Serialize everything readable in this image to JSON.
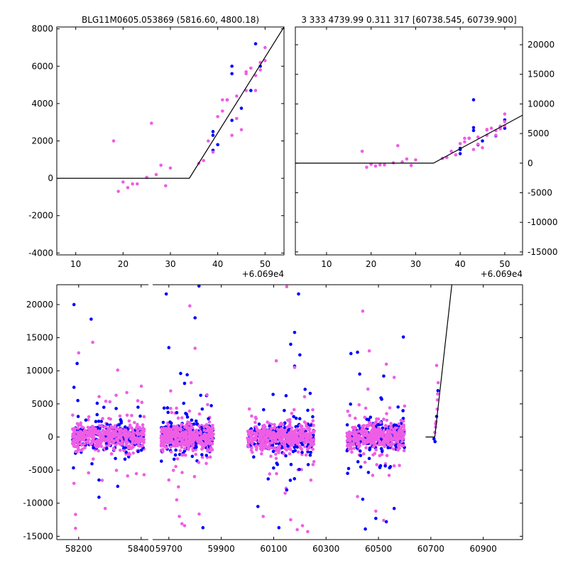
{
  "chart_data": [
    {
      "id": "top_left",
      "type": "scatter",
      "title": "BLG11M0605.053869 (5816.60, 4800.18)",
      "offset_label": "+6.069e4",
      "xlim": [
        6,
        54
      ],
      "ylim": [
        -4100,
        8100
      ],
      "xticks": [
        10,
        20,
        30,
        40,
        50
      ],
      "yticks": [
        -4000,
        -2000,
        0,
        2000,
        4000,
        6000,
        8000
      ],
      "yaxis_side": "left",
      "model_line": [
        [
          6,
          0
        ],
        [
          34,
          0
        ],
        [
          54,
          8100
        ]
      ],
      "series": [
        {
          "name": "blue",
          "color": "#0000ff",
          "points": [
            [
              39,
              1500
            ],
            [
              39,
              2300
            ],
            [
              39,
              2500
            ],
            [
              40,
              1800
            ],
            [
              42,
              4200
            ],
            [
              43,
              3100
            ],
            [
              43,
              5600
            ],
            [
              43,
              6000
            ],
            [
              45,
              3750
            ],
            [
              47,
              4700
            ],
            [
              48,
              7200
            ],
            [
              49,
              6000
            ]
          ]
        },
        {
          "name": "magenta",
          "color": "#ee5ee5",
          "points": [
            [
              18,
              2000
            ],
            [
              19,
              -700
            ],
            [
              20,
              -200
            ],
            [
              21,
              -500
            ],
            [
              22,
              -300
            ],
            [
              23,
              -300
            ],
            [
              25,
              50
            ],
            [
              26,
              2950
            ],
            [
              27,
              200
            ],
            [
              28,
              700
            ],
            [
              29,
              -400
            ],
            [
              30,
              550
            ],
            [
              36,
              800
            ],
            [
              37,
              950
            ],
            [
              38,
              2000
            ],
            [
              39,
              1400
            ],
            [
              40,
              3300
            ],
            [
              41,
              4200
            ],
            [
              41,
              3600
            ],
            [
              42,
              4200
            ],
            [
              43,
              2300
            ],
            [
              44,
              4400
            ],
            [
              44,
              3200
            ],
            [
              45,
              2600
            ],
            [
              46,
              4700
            ],
            [
              46,
              5600
            ],
            [
              46,
              5700
            ],
            [
              47,
              5900
            ],
            [
              48,
              5500
            ],
            [
              48,
              4700
            ],
            [
              49,
              5800
            ],
            [
              49,
              6200
            ],
            [
              50,
              6300
            ],
            [
              50,
              7000
            ]
          ]
        }
      ]
    },
    {
      "id": "top_right",
      "type": "scatter",
      "title": "3 333 4739.99 0.311 317 [60738.545, 60739.900]",
      "offset_label": "+6.069e4",
      "xlim": [
        3,
        54
      ],
      "ylim": [
        -15500,
        23000
      ],
      "xticks": [
        10,
        20,
        30,
        40,
        50
      ],
      "yticks": [
        -15000,
        -10000,
        -5000,
        0,
        5000,
        10000,
        15000,
        20000
      ],
      "yaxis_side": "right",
      "model_line": [
        [
          3,
          0
        ],
        [
          34,
          0
        ],
        [
          54,
          8100
        ]
      ],
      "series": [
        {
          "name": "blue",
          "color": "#0000ff",
          "points": [
            [
              40,
              1600
            ],
            [
              40,
              2300
            ],
            [
              40,
              2500
            ],
            [
              42,
              4200
            ],
            [
              43,
              5500
            ],
            [
              43,
              6000
            ],
            [
              43,
              10700
            ],
            [
              44,
              3100
            ],
            [
              45,
              3750
            ],
            [
              48,
              4600
            ],
            [
              49,
              6200
            ],
            [
              50,
              5900
            ],
            [
              50,
              7300
            ]
          ]
        },
        {
          "name": "magenta",
          "color": "#ee5ee5",
          "points": [
            [
              18,
              2000
            ],
            [
              19,
              -700
            ],
            [
              20,
              -200
            ],
            [
              21,
              -500
            ],
            [
              22,
              -300
            ],
            [
              23,
              -300
            ],
            [
              25,
              50
            ],
            [
              26,
              2950
            ],
            [
              27,
              200
            ],
            [
              28,
              700
            ],
            [
              29,
              -400
            ],
            [
              30,
              550
            ],
            [
              36,
              800
            ],
            [
              37,
              950
            ],
            [
              38,
              2000
            ],
            [
              39,
              1400
            ],
            [
              40,
              3300
            ],
            [
              41,
              4200
            ],
            [
              41,
              3600
            ],
            [
              42,
              4200
            ],
            [
              43,
              2300
            ],
            [
              44,
              4400
            ],
            [
              44,
              3200
            ],
            [
              45,
              2600
            ],
            [
              46,
              4700
            ],
            [
              46,
              5600
            ],
            [
              46,
              5700
            ],
            [
              47,
              5900
            ],
            [
              48,
              5500
            ],
            [
              48,
              4700
            ],
            [
              49,
              5800
            ],
            [
              49,
              6200
            ],
            [
              50,
              6300
            ],
            [
              50,
              7000
            ],
            [
              50,
              8300
            ]
          ]
        }
      ]
    },
    {
      "id": "bottom",
      "type": "scatter",
      "title": "",
      "xlim": [
        58130,
        61050
      ],
      "ylim": [
        -15500,
        23000
      ],
      "xticks": [
        58200,
        58400,
        59700,
        59900,
        60100,
        60300,
        60500,
        60700,
        60900
      ],
      "x_axis_break": {
        "left_end": 58430,
        "right_start": 59630
      },
      "yticks": [
        -15000,
        -10000,
        -5000,
        0,
        5000,
        10000,
        15000,
        20000
      ],
      "yaxis_side": "left",
      "model_line": [
        [
          60680,
          0
        ],
        [
          60715,
          0
        ],
        [
          60780,
          23000
        ]
      ],
      "seasons": [
        {
          "x_range": [
            58180,
            58410
          ],
          "blue_outliers": [
            [
              58185,
              20000
            ],
            [
              58195,
              11100
            ],
            [
              58240,
              17800
            ],
            [
              58265,
              -6500
            ],
            [
              58265,
              -9100
            ],
            [
              58320,
              4300
            ],
            [
              58390,
              4500
            ],
            [
              58185,
              7500
            ]
          ],
          "magenta_outliers": [
            [
              58190,
              -13800
            ],
            [
              58185,
              -7000
            ],
            [
              58200,
              12700
            ],
            [
              58245,
              14300
            ],
            [
              58285,
              -10800
            ],
            [
              58325,
              10100
            ],
            [
              58320,
              6300
            ],
            [
              58190,
              -11700
            ]
          ]
        },
        {
          "x_range": [
            59670,
            59870
          ],
          "blue_outliers": [
            [
              59690,
              21600
            ],
            [
              59700,
              13500
            ],
            [
              59815,
              22800
            ],
            [
              59800,
              18000
            ],
            [
              59770,
              9400
            ],
            [
              59745,
              9600
            ],
            [
              59830,
              -13700
            ],
            [
              59760,
              8100
            ]
          ],
          "magenta_outliers": [
            [
              59780,
              19800
            ],
            [
              59800,
              13400
            ],
            [
              59760,
              -13400
            ],
            [
              59750,
              -13100
            ],
            [
              59730,
              -9500
            ],
            [
              59740,
              -12000
            ],
            [
              59700,
              -6500
            ],
            [
              59785,
              8200
            ]
          ]
        },
        {
          "x_range": [
            60000,
            60255
          ],
          "blue_outliers": [
            [
              60195,
              21600
            ],
            [
              60180,
              15800
            ],
            [
              60165,
              14000
            ],
            [
              60120,
              -13700
            ],
            [
              60040,
              -10500
            ],
            [
              60200,
              12400
            ],
            [
              60220,
              7200
            ],
            [
              60180,
              10700
            ],
            [
              60150,
              -8000
            ]
          ],
          "magenta_outliers": [
            [
              60150,
              22700
            ],
            [
              60190,
              -14000
            ],
            [
              60210,
              -13400
            ],
            [
              60230,
              -14300
            ],
            [
              60165,
              -12500
            ],
            [
              60110,
              11500
            ],
            [
              60060,
              -12000
            ],
            [
              60180,
              10500
            ]
          ]
        },
        {
          "x_range": [
            60380,
            60600
          ],
          "blue_outliers": [
            [
              60450,
              -13900
            ],
            [
              60420,
              12800
            ],
            [
              60395,
              12600
            ],
            [
              60595,
              15100
            ],
            [
              60490,
              -12300
            ],
            [
              60520,
              9200
            ],
            [
              60530,
              -12800
            ],
            [
              60560,
              -10800
            ],
            [
              60440,
              -9400
            ]
          ],
          "magenta_outliers": [
            [
              60440,
              19000
            ],
            [
              60465,
              13000
            ],
            [
              60530,
              11000
            ],
            [
              60520,
              -12600
            ],
            [
              60490,
              -11200
            ],
            [
              60420,
              -9000
            ],
            [
              60580,
              -4300
            ],
            [
              60560,
              9000
            ]
          ]
        }
      ],
      "late_points": [
        [
          60712,
          -300
        ],
        [
          60715,
          700
        ],
        [
          60718,
          1500
        ],
        [
          60720,
          2300
        ],
        [
          60722,
          3100
        ],
        [
          60724,
          4200
        ],
        [
          60725,
          5600
        ],
        [
          60726,
          6500
        ],
        [
          60727,
          7000
        ],
        [
          60728,
          8200
        ],
        [
          60722,
          10800
        ],
        [
          60718,
          2000
        ],
        [
          60716,
          -700
        ]
      ]
    }
  ],
  "colors": {
    "blue": "#0000ff",
    "magenta": "#ee5ee5",
    "axis": "#000000",
    "background": "#ffffff"
  }
}
